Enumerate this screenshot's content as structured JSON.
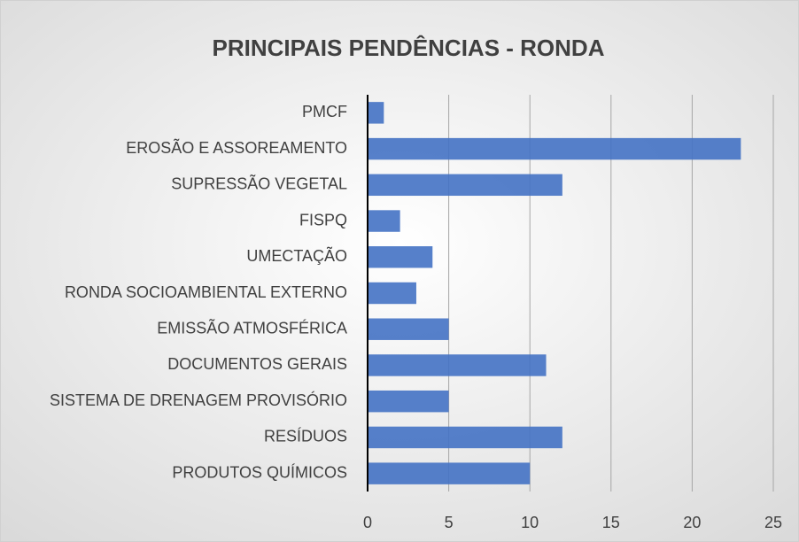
{
  "chart_data": {
    "type": "bar",
    "orientation": "horizontal",
    "title": "PRINCIPAIS PENDÊNCIAS - RONDA",
    "categories": [
      "PMCF",
      "EROSÃO E ASSOREAMENTO",
      "SUPRESSÃO VEGETAL",
      "FISPQ",
      "UMECTAÇÃO",
      "RONDA SOCIOAMBIENTAL EXTERNO",
      "EMISSÃO ATMOSFÉRICA",
      "DOCUMENTOS GERAIS",
      "SISTEMA DE DRENAGEM PROVISÓRIO",
      "RESÍDUOS",
      "PRODUTOS QUÍMICOS"
    ],
    "values": [
      1,
      23,
      12,
      2,
      4,
      3,
      5,
      11,
      5,
      12,
      10
    ],
    "color": "#4472c4",
    "xlim": [
      0,
      25
    ],
    "xticks": [
      0,
      5,
      10,
      15,
      20,
      25
    ],
    "grid": true
  }
}
